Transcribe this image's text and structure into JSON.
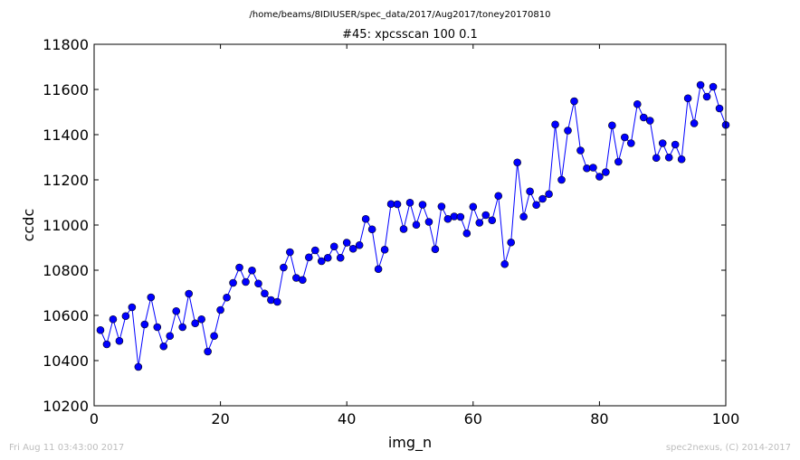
{
  "figure": {
    "supertitle": "/home/beams/8IDIUSER/spec_data/2017/Aug2017/toney20170810",
    "footer_left": "Fri Aug 11 03:43:00 2017",
    "footer_right": "spec2nexus, (C) 2014-2017",
    "line_color": "#0000ff",
    "marker_color": "#0000ff"
  },
  "chart_data": {
    "type": "line",
    "title": "#45: xpcsscan 100 0.1",
    "xlabel": "img_n",
    "ylabel": "ccdc",
    "xlim": [
      0,
      100
    ],
    "ylim": [
      10200,
      11800
    ],
    "xticks": [
      0,
      20,
      40,
      60,
      80,
      100
    ],
    "yticks": [
      10200,
      10400,
      10600,
      10800,
      11000,
      11200,
      11400,
      11600,
      11800
    ],
    "grid": false,
    "series": [
      {
        "marker": "circle",
        "x": [
          1,
          2,
          3,
          4,
          5,
          6,
          7,
          8,
          9,
          10,
          11,
          12,
          13,
          14,
          15,
          16,
          17,
          18,
          19,
          20,
          21,
          22,
          23,
          24,
          25,
          26,
          27,
          28,
          29,
          30,
          31,
          32,
          33,
          34,
          35,
          36,
          37,
          38,
          39,
          40,
          41,
          42,
          43,
          44,
          45,
          46,
          47,
          48,
          49,
          50,
          51,
          52,
          53,
          54,
          55,
          56,
          57,
          58,
          59,
          60,
          61,
          62,
          63,
          64,
          65,
          66,
          67,
          68,
          69,
          70,
          71,
          72,
          73,
          74,
          75,
          76,
          77,
          78,
          79,
          80,
          81,
          82,
          83,
          84,
          85,
          86,
          87,
          88,
          89,
          90,
          91,
          92,
          93,
          94,
          95,
          96,
          97,
          98,
          99,
          100
        ],
        "values": [
          10535,
          10472,
          10583,
          10487,
          10597,
          10636,
          10372,
          10560,
          10680,
          10548,
          10463,
          10509,
          10619,
          10548,
          10696,
          10565,
          10583,
          10440,
          10509,
          10624,
          10679,
          10744,
          10812,
          10748,
          10799,
          10741,
          10697,
          10668,
          10660,
          10812,
          10880,
          10766,
          10757,
          10857,
          10888,
          10840,
          10855,
          10905,
          10855,
          10922,
          10895,
          10911,
          11027,
          10981,
          10805,
          10891,
          11093,
          11092,
          10982,
          11099,
          11001,
          11090,
          11014,
          10893,
          11082,
          11027,
          11038,
          11036,
          10963,
          11081,
          11010,
          11044,
          11021,
          11129,
          10827,
          10923,
          11277,
          11037,
          11149,
          11089,
          11116,
          11137,
          11445,
          11200,
          11418,
          11548,
          11330,
          11251,
          11254,
          11214,
          11234,
          11441,
          11280,
          11388,
          11362,
          11535,
          11476,
          11462,
          11297,
          11362,
          11299,
          11356,
          11291,
          11561,
          11450,
          11620,
          11568,
          11612,
          11516,
          11443
        ]
      }
    ]
  }
}
